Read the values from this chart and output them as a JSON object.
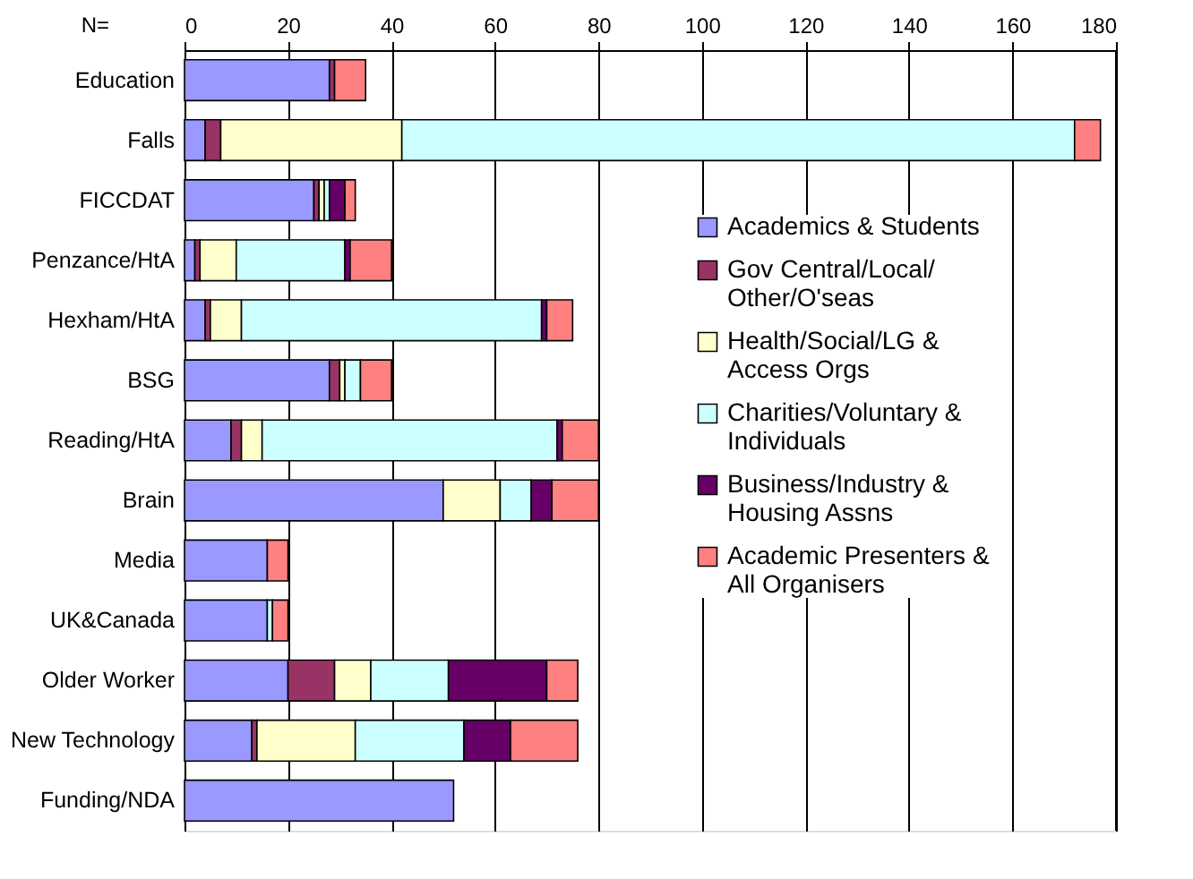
{
  "chart_data": {
    "type": "bar",
    "orientation": "horizontal",
    "stacked": true,
    "categories": [
      "Education",
      "Falls",
      "FICCDAT",
      "Penzance/HtA",
      "Hexham/HtA",
      "BSG",
      "Reading/HtA",
      "Brain",
      "Media",
      "UK&Canada",
      "Older Worker",
      "New Technology",
      "Funding/NDA"
    ],
    "series": [
      {
        "name": "Academics & Students",
        "color": "#9999ff",
        "values": [
          28,
          4,
          25,
          2,
          4,
          28,
          9,
          50,
          16,
          16,
          20,
          13,
          52
        ]
      },
      {
        "name": "Gov Central/Local/Other/O'seas",
        "color": "#993366",
        "values": [
          1,
          3,
          1,
          1,
          1,
          2,
          2,
          null,
          null,
          null,
          9,
          1,
          null
        ]
      },
      {
        "name": "Health/Social/LG & Access Orgs",
        "color": "#ffffcc",
        "values": [
          null,
          35,
          1,
          7,
          6,
          1,
          4,
          11,
          null,
          null,
          7,
          19,
          null
        ]
      },
      {
        "name": "Charities/Voluntary & Individuals",
        "color": "#ccffff",
        "values": [
          null,
          130,
          1,
          21,
          58,
          3,
          57,
          6,
          null,
          1,
          15,
          21,
          null
        ]
      },
      {
        "name": "Business/Industry & Housing Assns",
        "color": "#660066",
        "values": [
          null,
          null,
          3,
          1,
          1,
          null,
          1,
          4,
          null,
          null,
          19,
          9,
          null
        ]
      },
      {
        "name": "Academic Presenters & All Organisers",
        "color": "#ff8080",
        "values": [
          6,
          5,
          2,
          8,
          5,
          6,
          7,
          9,
          4,
          3,
          6,
          13,
          null
        ]
      }
    ],
    "xlim": [
      0,
      180
    ],
    "xticks": [
      0,
      20,
      40,
      60,
      80,
      100,
      120,
      140,
      160,
      180
    ],
    "grid": "x",
    "legend": "right",
    "annotations": [
      "N="
    ]
  }
}
